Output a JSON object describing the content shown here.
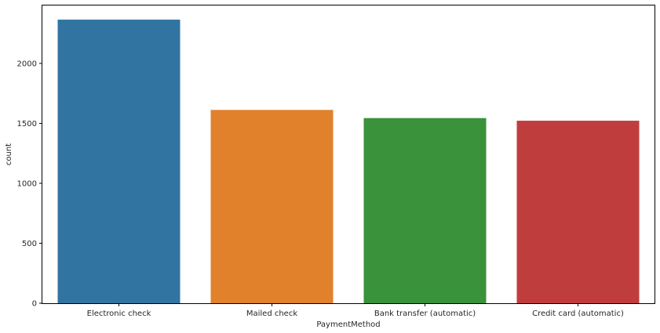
{
  "chart_data": {
    "type": "bar",
    "categories": [
      "Electronic check",
      "Mailed check",
      "Bank transfer (automatic)",
      "Credit card (automatic)"
    ],
    "values": [
      2365,
      1612,
      1544,
      1522
    ],
    "xlabel": "PaymentMethod",
    "ylabel": "count",
    "ylim": [
      0,
      2483
    ],
    "yticks": [
      0,
      500,
      1000,
      1500,
      2000
    ],
    "colors": [
      "#3274a1",
      "#e1812c",
      "#3a923a",
      "#c03d3e"
    ],
    "grid": false,
    "legend": "none"
  }
}
